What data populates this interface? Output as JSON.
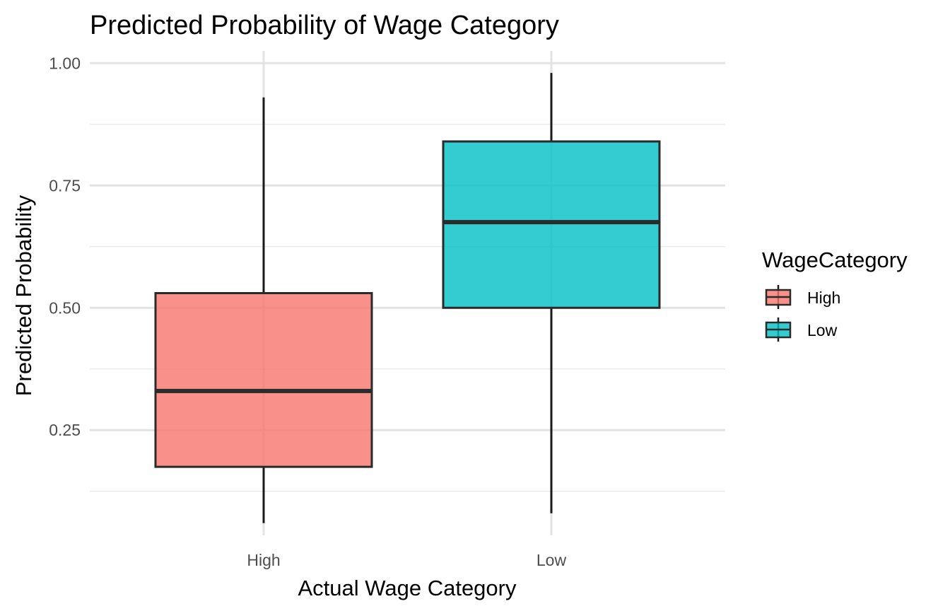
{
  "chart_data": {
    "type": "box",
    "title": "Predicted Probability of Wage Category",
    "xlabel": "Actual Wage Category",
    "ylabel": "Predicted Probability",
    "categories": [
      "High",
      "Low"
    ],
    "boxes": [
      {
        "category": "High",
        "min": 0.06,
        "q1": 0.175,
        "median": 0.33,
        "q3": 0.53,
        "max": 0.93,
        "fill": "#F8766D"
      },
      {
        "category": "Low",
        "min": 0.08,
        "q1": 0.5,
        "median": 0.675,
        "q3": 0.84,
        "max": 0.98,
        "fill": "#00BFC4"
      }
    ],
    "ylim": [
      0.035,
      1.025
    ],
    "yticks": [
      0.25,
      0.5,
      0.75,
      1.0
    ],
    "ytick_labels": [
      "0.25",
      "0.50",
      "0.75",
      "1.00"
    ],
    "grid": true,
    "legend": {
      "title": "WageCategory",
      "position": "right",
      "entries": [
        {
          "label": "High",
          "fill": "#F8766D"
        },
        {
          "label": "Low",
          "fill": "#00BFC4"
        }
      ]
    }
  }
}
